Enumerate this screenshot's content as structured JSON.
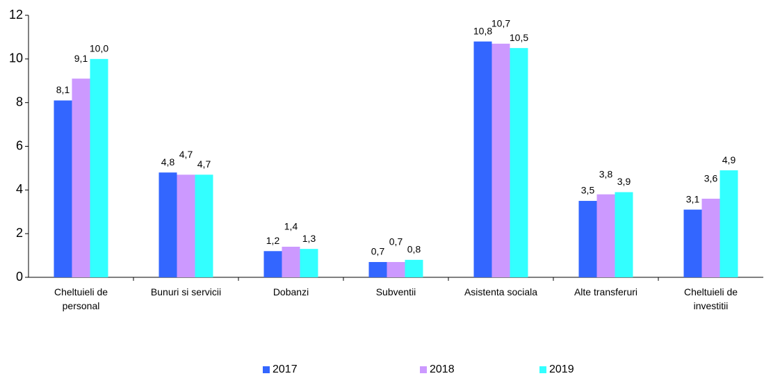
{
  "chart_data": {
    "type": "bar",
    "categories": [
      "Cheltuieli de personal",
      "Bunuri si servicii",
      "Dobanzi",
      "Subventii",
      "Asistenta sociala",
      "Alte transferuri",
      "Cheltuieli de investitii"
    ],
    "series": [
      {
        "name": "2017",
        "color": "#3366ff",
        "values": [
          8.1,
          4.8,
          1.2,
          0.7,
          10.8,
          3.5,
          3.1
        ],
        "value_labels": [
          "8,1",
          "4,8",
          "1,2",
          "0,7",
          "10,8",
          "3,5",
          "3,1"
        ]
      },
      {
        "name": "2018",
        "color": "#cc99ff",
        "values": [
          9.1,
          4.7,
          1.4,
          0.7,
          10.7,
          3.8,
          3.6
        ],
        "value_labels": [
          "9,1",
          "4,7",
          "1,4",
          "0,7",
          "10,7",
          "3,8",
          "3,6"
        ]
      },
      {
        "name": "2019",
        "color": "#33ffff",
        "values": [
          10.0,
          4.7,
          1.3,
          0.8,
          10.5,
          3.9,
          4.9
        ],
        "value_labels": [
          "10,0",
          "4,7",
          "1,3",
          "0,8",
          "10,5",
          "3,9",
          "4,9"
        ]
      }
    ],
    "ylim": [
      0,
      12
    ],
    "yticks": [
      0,
      2,
      4,
      6,
      8,
      10,
      12
    ],
    "grid": false,
    "legend": "bottom"
  }
}
